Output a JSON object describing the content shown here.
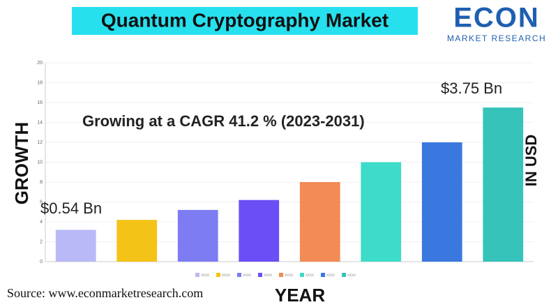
{
  "chart_data": {
    "type": "bar",
    "title": "Quantum Cryptography Market",
    "annotations": [
      "Growing at a CAGR 41.2 % (2023-2031)",
      "$0.54 Bn",
      "$3.75 Bn"
    ],
    "ylabel": "GROWTH",
    "y2label": "IN USD",
    "xlabel": "YEAR",
    "categories": [
      null,
      null,
      null,
      null,
      null,
      null,
      null,
      null
    ],
    "values": [
      3.2,
      4.2,
      5.2,
      6.2,
      8,
      10,
      12,
      15.5
    ],
    "colors": [
      "#b9b9f7",
      "#f4c317",
      "#7d7cf2",
      "#6b4ef5",
      "#f28b55",
      "#3ddbc9",
      "#3a78e0",
      "#36c3b9"
    ],
    "legend": [
      "xxxx",
      "xxxx",
      "xxxx",
      "xxxx",
      "xxxx",
      "xxxx",
      "xxxx",
      "xxxx"
    ],
    "ylim": [
      0,
      20
    ],
    "yticks": [
      0,
      2,
      4,
      6,
      8,
      10,
      12,
      14,
      16,
      18,
      20
    ],
    "grid": true
  },
  "logo": {
    "name": "ECON",
    "subtitle": "MARKET RESEARCH"
  },
  "source": "Source: www.econmarketresearch.com"
}
